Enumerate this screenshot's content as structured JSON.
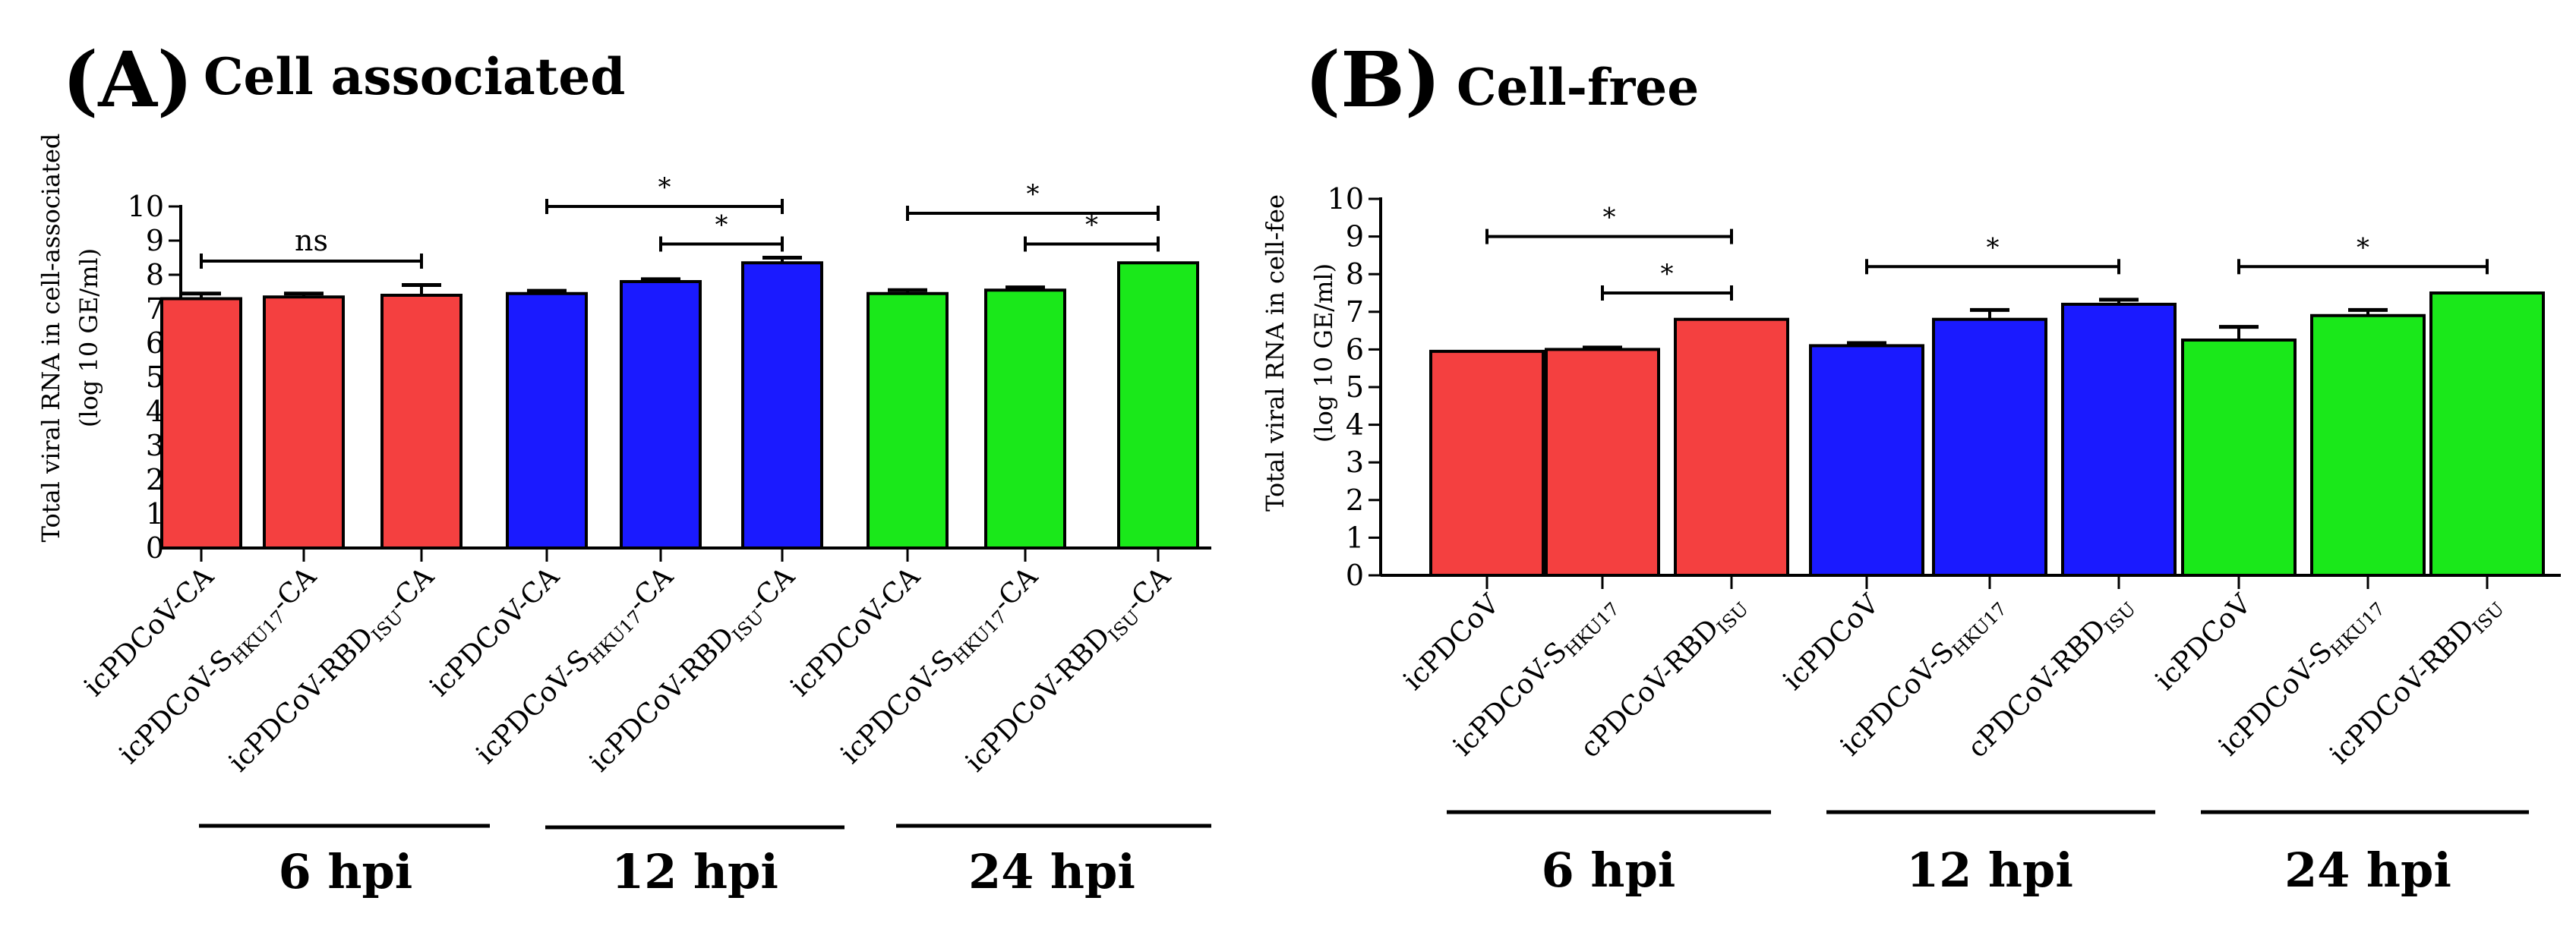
{
  "colors": {
    "red": "#f44040",
    "blue": "#1a1aff",
    "green": "#1ae81a",
    "axis": "#000000"
  },
  "chart_data": [
    {
      "type": "bar",
      "panel": "(A)",
      "title": "Cell associated",
      "ylabel_line1": "Total viral RNA in cell-associated",
      "ylabel_line2": "(log 10 GE/ml)",
      "ylim": [
        0,
        10
      ],
      "yticks": [
        "0",
        "1",
        "2",
        "3",
        "4",
        "5",
        "6",
        "7",
        "8",
        "9",
        "10"
      ],
      "groups": [
        "6 hpi",
        "12 hpi",
        "24 hpi"
      ],
      "bars": [
        {
          "label": "icPDCoV-CA",
          "value": 7.3,
          "error": 0.15,
          "color": "red",
          "group": 0
        },
        {
          "label": "icPDCoV-SHKU17-CA",
          "value": 7.35,
          "error": 0.1,
          "color": "red",
          "group": 0
        },
        {
          "label": "icPDCoV-RBDISU-CA",
          "value": 7.4,
          "error": 0.3,
          "color": "red",
          "group": 0
        },
        {
          "label": "icPDCoV-CA",
          "value": 7.45,
          "error": 0.08,
          "color": "blue",
          "group": 1
        },
        {
          "label": "icPDCoV-SHKU17-CA",
          "value": 7.8,
          "error": 0.07,
          "color": "blue",
          "group": 1
        },
        {
          "label": "icPDCoV-RBDISU-CA",
          "value": 8.35,
          "error": 0.15,
          "color": "blue",
          "group": 1
        },
        {
          "label": "icPDCoV-CA",
          "value": 7.45,
          "error": 0.1,
          "color": "green",
          "group": 2
        },
        {
          "label": "icPDCoV-SHKU17-CA",
          "value": 7.55,
          "error": 0.08,
          "color": "green",
          "group": 2
        },
        {
          "label": "icPDCoV-RBDISU-CA",
          "value": 8.35,
          "error": 0.0,
          "color": "green",
          "group": 2
        }
      ],
      "significance": [
        {
          "from": 0,
          "to": 2,
          "level": 8.4,
          "label": "ns"
        },
        {
          "from": 3,
          "to": 5,
          "level": 10.0,
          "label": "*"
        },
        {
          "from": 4,
          "to": 5,
          "level": 8.9,
          "label": "*"
        },
        {
          "from": 6,
          "to": 8,
          "level": 9.8,
          "label": "*"
        },
        {
          "from": 7,
          "to": 8,
          "level": 8.9,
          "label": "*"
        }
      ]
    },
    {
      "type": "bar",
      "panel": "(B)",
      "title": "Cell-free",
      "ylabel_line1": "Total viral RNA in cell-fee",
      "ylabel_line2": "(log 10 GE/ml)",
      "ylim": [
        0,
        10
      ],
      "yticks": [
        "0",
        "1",
        "2",
        "3",
        "4",
        "5",
        "6",
        "7",
        "8",
        "9",
        "10"
      ],
      "groups": [
        "6 hpi",
        "12 hpi",
        "24 hpi"
      ],
      "bars": [
        {
          "label": "icPDCoV",
          "value": 5.95,
          "error": 0.0,
          "color": "red",
          "group": 0
        },
        {
          "label": "icPDCoV-SHKU17",
          "value": 6.0,
          "error": 0.05,
          "color": "red",
          "group": 0
        },
        {
          "label": "cPDCoV-RBDISU",
          "value": 6.8,
          "error": 0.0,
          "color": "red",
          "group": 0
        },
        {
          "label": "icPDCoV",
          "value": 6.1,
          "error": 0.07,
          "color": "blue",
          "group": 1
        },
        {
          "label": "icPDCoV-SHKU17",
          "value": 6.8,
          "error": 0.25,
          "color": "blue",
          "group": 1
        },
        {
          "label": "cPDCoV-RBDISU",
          "value": 7.2,
          "error": 0.12,
          "color": "blue",
          "group": 1
        },
        {
          "label": "icPDCoV",
          "value": 6.25,
          "error": 0.35,
          "color": "green",
          "group": 2
        },
        {
          "label": "icPDCoV-SHKU17",
          "value": 6.9,
          "error": 0.15,
          "color": "green",
          "group": 2
        },
        {
          "label": "icPDCoV-RBDISU",
          "value": 7.5,
          "error": 0.0,
          "color": "green",
          "group": 2
        }
      ],
      "significance": [
        {
          "from": 0,
          "to": 2,
          "level": 9.0,
          "label": "*"
        },
        {
          "from": 1,
          "to": 2,
          "level": 7.5,
          "label": "*"
        },
        {
          "from": 3,
          "to": 5,
          "level": 8.2,
          "label": "*"
        },
        {
          "from": 6,
          "to": 8,
          "level": 8.2,
          "label": "*"
        }
      ]
    }
  ]
}
